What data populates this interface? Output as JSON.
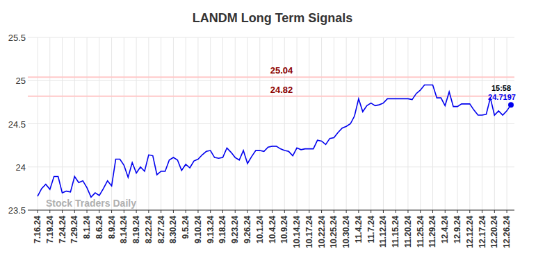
{
  "chart_data": {
    "type": "line",
    "title": "LANDM Long Term Signals",
    "watermark": "Stock Traders Daily",
    "last_point_time": "15:58",
    "reference_lines": [
      25.04,
      24.82
    ],
    "color": "#0000ee",
    "grid": true,
    "ylim": [
      23.5,
      25.5
    ],
    "yticks": [
      23.5,
      24,
      24.5,
      25,
      25.5
    ],
    "categories": [
      "7.16.24",
      null,
      null,
      "7.19.24",
      null,
      null,
      "7.24.24",
      null,
      null,
      "7.29.24",
      null,
      null,
      "8.1.24",
      null,
      null,
      "8.6.24",
      null,
      null,
      "8.9.24",
      null,
      null,
      "8.14.24",
      null,
      null,
      "8.19.24",
      null,
      null,
      "8.22.24",
      null,
      null,
      "8.27.24",
      null,
      null,
      "8.30.24",
      null,
      null,
      "9.5.24",
      null,
      null,
      "9.10.24",
      null,
      null,
      "9.13.24",
      null,
      null,
      "9.18.24",
      null,
      null,
      "9.23.24",
      null,
      null,
      "9.26.24",
      null,
      null,
      "10.1.24",
      null,
      null,
      "10.4.24",
      null,
      null,
      "10.9.24",
      null,
      null,
      "10.14.24",
      null,
      null,
      "10.17.24",
      null,
      null,
      "10.22.24",
      null,
      null,
      "10.25.24",
      null,
      null,
      "10.30.24",
      null,
      null,
      "11.4.24",
      null,
      null,
      "11.7.24",
      null,
      null,
      "11.12.24",
      null,
      null,
      "11.15.24",
      null,
      null,
      "11.20.24",
      null,
      null,
      "11.25.24",
      null,
      null,
      "11.29.24",
      null,
      null,
      "12.4.24",
      null,
      null,
      "12.9.24",
      null,
      null,
      "12.12.24",
      null,
      null,
      "12.17.24",
      null,
      null,
      "12.20.24",
      null,
      null,
      "12.26.24",
      null
    ],
    "values": [
      23.66,
      23.75,
      23.8,
      23.74,
      23.89,
      23.89,
      23.7,
      23.72,
      23.71,
      23.89,
      23.82,
      23.84,
      23.76,
      23.65,
      23.7,
      23.67,
      23.75,
      23.84,
      23.78,
      24.09,
      24.09,
      24.02,
      23.88,
      24.05,
      23.93,
      24.0,
      23.95,
      24.14,
      24.13,
      23.91,
      23.95,
      23.95,
      24.08,
      24.11,
      24.08,
      23.96,
      24.03,
      23.99,
      24.07,
      24.09,
      24.14,
      24.18,
      24.19,
      24.11,
      24.1,
      24.11,
      24.22,
      24.17,
      24.11,
      24.08,
      24.19,
      24.04,
      24.12,
      24.19,
      24.19,
      24.18,
      24.23,
      24.24,
      24.24,
      24.21,
      24.19,
      24.18,
      24.13,
      24.22,
      24.2,
      24.21,
      24.21,
      24.21,
      24.31,
      24.3,
      24.26,
      24.33,
      24.34,
      24.4,
      24.45,
      24.47,
      24.5,
      24.59,
      24.79,
      24.64,
      24.71,
      24.74,
      24.71,
      24.72,
      24.74,
      24.79,
      24.79,
      24.79,
      24.79,
      24.79,
      24.79,
      24.78,
      24.85,
      24.89,
      24.95,
      24.95,
      24.95,
      24.8,
      24.8,
      24.71,
      24.87,
      24.7,
      24.7,
      24.73,
      24.73,
      24.73,
      24.66,
      24.6,
      24.6,
      24.61,
      24.8,
      24.6,
      24.65,
      24.6,
      24.65,
      24.7197
    ]
  }
}
